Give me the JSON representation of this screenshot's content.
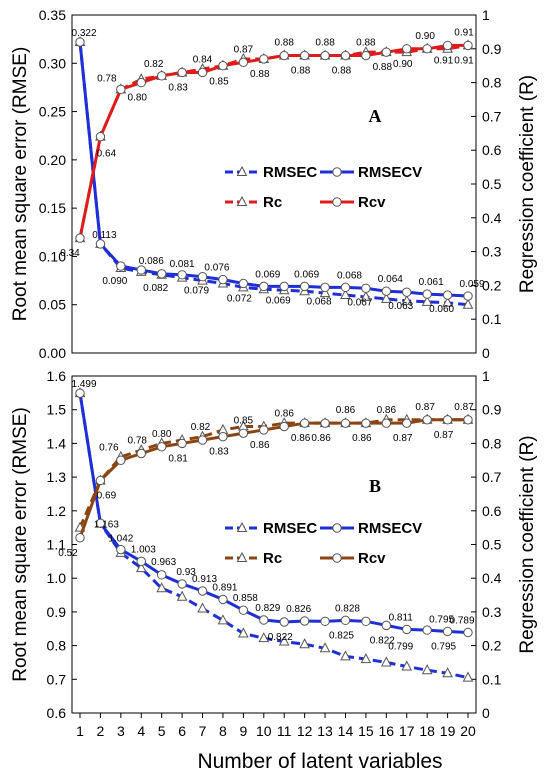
{
  "chart_data": [
    {
      "type": "line",
      "panel": "A",
      "x": [
        1,
        2,
        3,
        4,
        5,
        6,
        7,
        8,
        9,
        10,
        11,
        12,
        13,
        14,
        15,
        16,
        17,
        18,
        19,
        20
      ],
      "ylabel": "Root mean square error (RMSE)",
      "y2label": "Regression coefficient (R)",
      "xlabel": "Number of latent variables",
      "ylim": [
        0,
        0.35
      ],
      "y2lim": [
        0,
        1
      ],
      "yticks": [
        "0.00",
        "0.05",
        "0.10",
        "0.15",
        "0.20",
        "0.25",
        "0.30",
        "0.35"
      ],
      "y2ticks": [
        "0",
        "0.1",
        "0.2",
        "0.3",
        "0.4",
        "0.5",
        "0.6",
        "0.7",
        "0.8",
        "0.9",
        "1"
      ],
      "legend_position": "center-right",
      "series": [
        {
          "name": "RMSEC",
          "axis": "left",
          "color": "#1f2fd6",
          "dashed": true,
          "marker": "triangle",
          "values": [
            0.322,
            0.113,
            0.088,
            0.084,
            0.081,
            0.078,
            0.075,
            0.072,
            0.068,
            0.066,
            0.065,
            0.064,
            0.062,
            0.06,
            0.058,
            0.056,
            0.054,
            0.053,
            0.052,
            0.05
          ]
        },
        {
          "name": "RMSECV",
          "axis": "left",
          "color": "#1f2fd6",
          "dashed": false,
          "marker": "circle",
          "values": [
            0.322,
            0.113,
            0.09,
            0.086,
            0.082,
            0.081,
            0.079,
            0.076,
            0.072,
            0.069,
            0.069,
            0.069,
            0.068,
            0.068,
            0.067,
            0.064,
            0.063,
            0.061,
            0.06,
            0.059
          ]
        },
        {
          "name": "Rc",
          "axis": "right",
          "color": "#e01b1b",
          "dashed": true,
          "marker": "triangle",
          "values": [
            0.34,
            0.64,
            0.78,
            0.81,
            0.82,
            0.83,
            0.84,
            0.85,
            0.87,
            0.87,
            0.88,
            0.88,
            0.88,
            0.88,
            0.89,
            0.89,
            0.89,
            0.9,
            0.9,
            0.91
          ]
        },
        {
          "name": "Rcv",
          "axis": "right",
          "color": "#e01b1b",
          "dashed": false,
          "marker": "circle",
          "values": [
            0.34,
            0.64,
            0.78,
            0.8,
            0.82,
            0.83,
            0.83,
            0.85,
            0.86,
            0.87,
            0.88,
            0.88,
            0.88,
            0.88,
            0.88,
            0.89,
            0.9,
            0.9,
            0.91,
            0.91
          ]
        }
      ],
      "labels": [
        {
          "text": "0.322"
        },
        {
          "text": "0.113"
        },
        {
          "text": "0.090"
        },
        {
          "text": "0.086"
        },
        {
          "text": "0.082"
        },
        {
          "text": "0.081"
        },
        {
          "text": "0.079"
        },
        {
          "text": "0.076"
        },
        {
          "text": "0.072"
        },
        {
          "text": "0.069"
        },
        {
          "text": "0.069"
        },
        {
          "text": "0.069"
        },
        {
          "text": "0.068"
        },
        {
          "text": "0.068"
        },
        {
          "text": "0.067"
        },
        {
          "text": "0.064"
        },
        {
          "text": "0.063"
        },
        {
          "text": "0.061"
        },
        {
          "text": "0.060"
        },
        {
          "text": "0.059"
        },
        {
          "text": "0.34"
        },
        {
          "text": "0.64"
        },
        {
          "text": "0.78"
        },
        {
          "text": "0.80"
        },
        {
          "text": "0.82"
        },
        {
          "text": "0.83"
        },
        {
          "text": "0.84"
        },
        {
          "text": "0.85"
        },
        {
          "text": "0.87"
        },
        {
          "text": "0.88"
        },
        {
          "text": "0.88"
        },
        {
          "text": "0.88"
        },
        {
          "text": "0.88"
        },
        {
          "text": "0.88"
        },
        {
          "text": "0.88"
        },
        {
          "text": "0.88"
        },
        {
          "text": "0.90"
        },
        {
          "text": "0.90"
        },
        {
          "text": "0.91"
        },
        {
          "text": "0.91"
        },
        {
          "text": "0.91"
        }
      ]
    },
    {
      "type": "line",
      "panel": "B",
      "x": [
        1,
        2,
        3,
        4,
        5,
        6,
        7,
        8,
        9,
        10,
        11,
        12,
        13,
        14,
        15,
        16,
        17,
        18,
        19,
        20
      ],
      "ylabel": "Root mean square error (RMSE)",
      "y2label": "Regression coefficient (R)",
      "xlabel": "Number of latent variables",
      "ylim": [
        0.6,
        1.6
      ],
      "y2lim": [
        0,
        1
      ],
      "yticks": [
        "0.6",
        "0.7",
        "0.8",
        "0.9",
        "1.0",
        "1.1",
        "1.2",
        "1.3",
        "1.4",
        "1.5",
        "1.6"
      ],
      "y2ticks": [
        "0",
        "0.1",
        "0.2",
        "0.3",
        "0.4",
        "0.5",
        "0.6",
        "0.7",
        "0.8",
        "0.9",
        "1"
      ],
      "legend_position": "center-right",
      "series": [
        {
          "name": "RMSEC",
          "axis": "left",
          "color": "#1f2fd6",
          "dashed": true,
          "marker": "triangle",
          "values": [
            1.549,
            1.163,
            1.075,
            1.03,
            0.97,
            0.945,
            0.91,
            0.875,
            0.836,
            0.822,
            0.812,
            0.804,
            0.792,
            0.768,
            0.76,
            0.75,
            0.738,
            0.727,
            0.718,
            0.705
          ]
        },
        {
          "name": "RMSECV",
          "axis": "left",
          "color": "#1f2fd6",
          "dashed": false,
          "marker": "circle",
          "values": [
            1.549,
            1.163,
            1.085,
            1.05,
            1.01,
            0.983,
            0.962,
            0.937,
            0.905,
            0.876,
            0.87,
            0.873,
            0.872,
            0.875,
            0.872,
            0.86,
            0.848,
            0.846,
            0.842,
            0.839
          ]
        },
        {
          "name": "Rc",
          "axis": "right",
          "color": "#8b4513",
          "dashed": true,
          "marker": "triangle",
          "values": [
            0.55,
            0.69,
            0.76,
            0.78,
            0.8,
            0.81,
            0.82,
            0.84,
            0.85,
            0.85,
            0.86,
            0.86,
            0.86,
            0.86,
            0.86,
            0.87,
            0.87,
            0.87,
            0.87,
            0.87
          ]
        },
        {
          "name": "Rcv",
          "axis": "right",
          "color": "#8b4513",
          "dashed": false,
          "marker": "circle",
          "values": [
            0.52,
            0.69,
            0.75,
            0.77,
            0.79,
            0.8,
            0.81,
            0.82,
            0.83,
            0.84,
            0.85,
            0.86,
            0.86,
            0.86,
            0.86,
            0.86,
            0.86,
            0.87,
            0.87,
            0.87
          ]
        }
      ],
      "labels": [
        {
          "text": "1.499"
        },
        {
          "text": "1.163"
        },
        {
          "text": "1.042"
        },
        {
          "text": "1.003"
        },
        {
          "text": "0.963"
        },
        {
          "text": "0.93"
        },
        {
          "text": "0.913"
        },
        {
          "text": "0.891"
        },
        {
          "text": "0.858"
        },
        {
          "text": "0.829"
        },
        {
          "text": "0.826"
        },
        {
          "text": "0.828"
        },
        {
          "text": "0.811"
        },
        {
          "text": "0.795"
        },
        {
          "text": "0.789"
        },
        {
          "text": "0.822"
        },
        {
          "text": "0.825"
        },
        {
          "text": "0.822"
        },
        {
          "text": "0.799"
        },
        {
          "text": "0.795"
        },
        {
          "text": "0.52"
        },
        {
          "text": "0.69"
        },
        {
          "text": "0.76"
        },
        {
          "text": "0.78"
        },
        {
          "text": "0.80"
        },
        {
          "text": "0.81"
        },
        {
          "text": "0.82"
        },
        {
          "text": "0.83"
        },
        {
          "text": "0.85"
        },
        {
          "text": "0.86"
        },
        {
          "text": "0.86"
        },
        {
          "text": "0.86"
        },
        {
          "text": "0.86"
        },
        {
          "text": "0.86"
        },
        {
          "text": "0.86"
        },
        {
          "text": "0.86"
        },
        {
          "text": "0.87"
        },
        {
          "text": "0.87"
        },
        {
          "text": "0.87"
        },
        {
          "text": "0.87"
        }
      ]
    }
  ],
  "x_ticks": [
    "1",
    "2",
    "3",
    "4",
    "5",
    "6",
    "7",
    "8",
    "9",
    "10",
    "11",
    "12",
    "13",
    "14",
    "15",
    "16",
    "17",
    "18",
    "19",
    "20"
  ],
  "xlabel": "Number of latent variables"
}
